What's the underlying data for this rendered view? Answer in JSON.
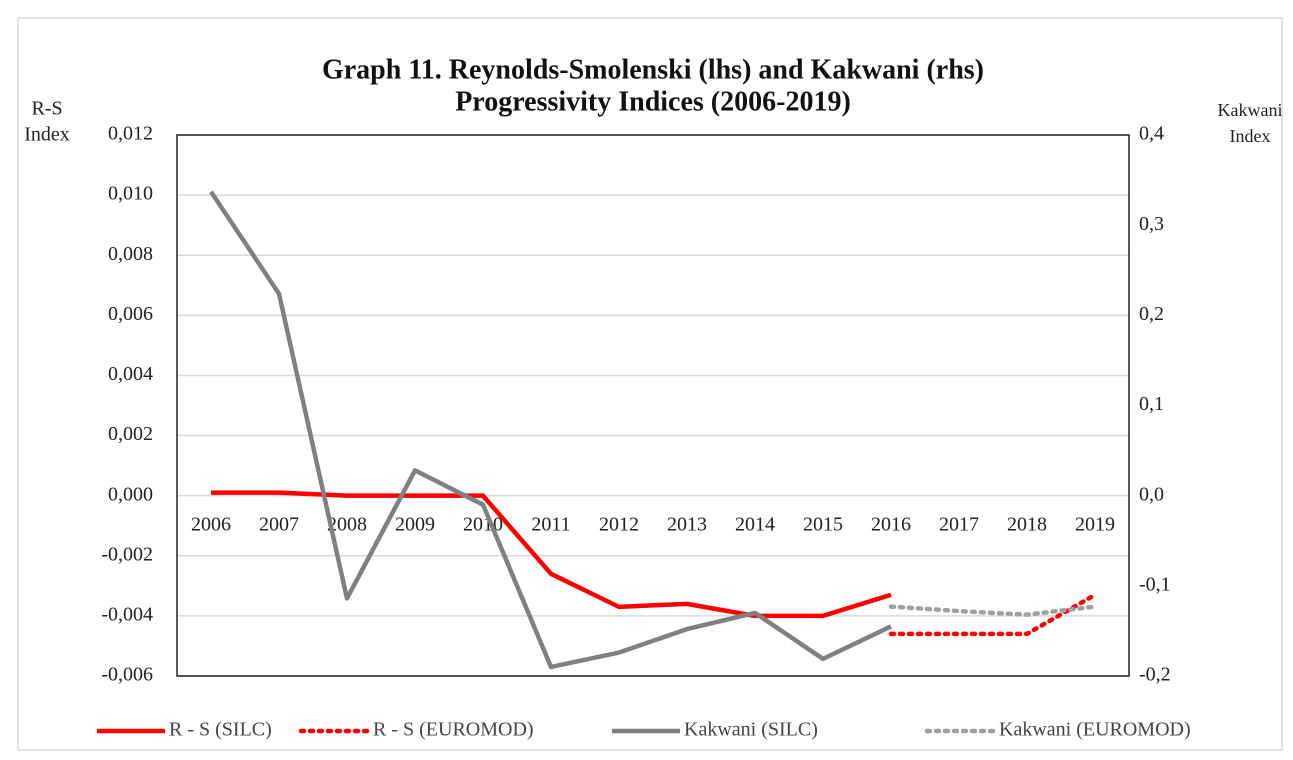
{
  "chart_data": {
    "type": "line",
    "title": [
      "Graph 11. Reynolds-Smolenski (lhs) and Kakwani (rhs)",
      "Progressivity Indices (2006-2019)"
    ],
    "y_label": [
      "R-S",
      "Index"
    ],
    "y2_label": [
      "Kakwani",
      "Index"
    ],
    "categories": [
      "2006",
      "2007",
      "2008",
      "2009",
      "2010",
      "2011",
      "2012",
      "2013",
      "2014",
      "2015",
      "2016",
      "2017",
      "2018",
      "2019"
    ],
    "series": [
      {
        "name": "R - S (SILC)",
        "color": "#ff0000",
        "dash": "solid",
        "values": [
          0.0001,
          0.0001,
          0.0,
          0.0,
          0.0,
          -0.0026,
          -0.0037,
          -0.0036,
          -0.004,
          -0.004,
          -0.0033,
          null,
          null,
          null
        ]
      },
      {
        "name": "R - S (EUROMOD)",
        "color": "#ff0000",
        "dash": "dotted",
        "values": [
          null,
          null,
          null,
          null,
          null,
          null,
          null,
          null,
          null,
          null,
          -0.0046,
          -0.0046,
          -0.0046,
          -0.0033
        ]
      },
      {
        "name": "Kakwani (SILC)",
        "color": "#808080",
        "dash": "solid",
        "axis": "y2",
        "values": [
          0.337,
          0.224,
          -0.114,
          0.028,
          -0.01,
          -0.19,
          -0.174,
          -0.148,
          -0.13,
          -0.181,
          -0.145,
          null,
          null,
          null
        ]
      },
      {
        "name": "Kakwani (EUROMOD)",
        "color": "#a0a0a0",
        "dash": "dotted",
        "axis": "y2",
        "values": [
          null,
          null,
          null,
          null,
          null,
          null,
          null,
          null,
          null,
          null,
          -0.123,
          -0.128,
          -0.132,
          -0.123
        ]
      }
    ],
    "ylim": [
      -0.006,
      0.012
    ],
    "yticks": [
      {
        "value": -0.006,
        "label": "-0,006"
      },
      {
        "value": -0.004,
        "label": "-0,004"
      },
      {
        "value": -0.002,
        "label": "-0,002"
      },
      {
        "value": 0,
        "label": "0,000"
      },
      {
        "value": 0.002,
        "label": "0,002"
      },
      {
        "value": 0.004,
        "label": "0,004"
      },
      {
        "value": 0.006,
        "label": "0,006"
      },
      {
        "value": 0.008,
        "label": "0,008"
      },
      {
        "value": 0.01,
        "label": "0,010"
      },
      {
        "value": 0.012,
        "label": "0,012"
      }
    ],
    "y2lim": [
      -0.2,
      0.4
    ],
    "y2ticks": [
      {
        "value": -0.2,
        "label": "-0,2"
      },
      {
        "value": -0.1,
        "label": "-0,1"
      },
      {
        "value": 0,
        "label": "0,0"
      },
      {
        "value": 0.1,
        "label": "0,1"
      },
      {
        "value": 0.2,
        "label": "0,2"
      },
      {
        "value": 0.3,
        "label": "0,3"
      },
      {
        "value": 0.4,
        "label": "0,4"
      }
    ],
    "grid": true,
    "legend": "bottom"
  }
}
